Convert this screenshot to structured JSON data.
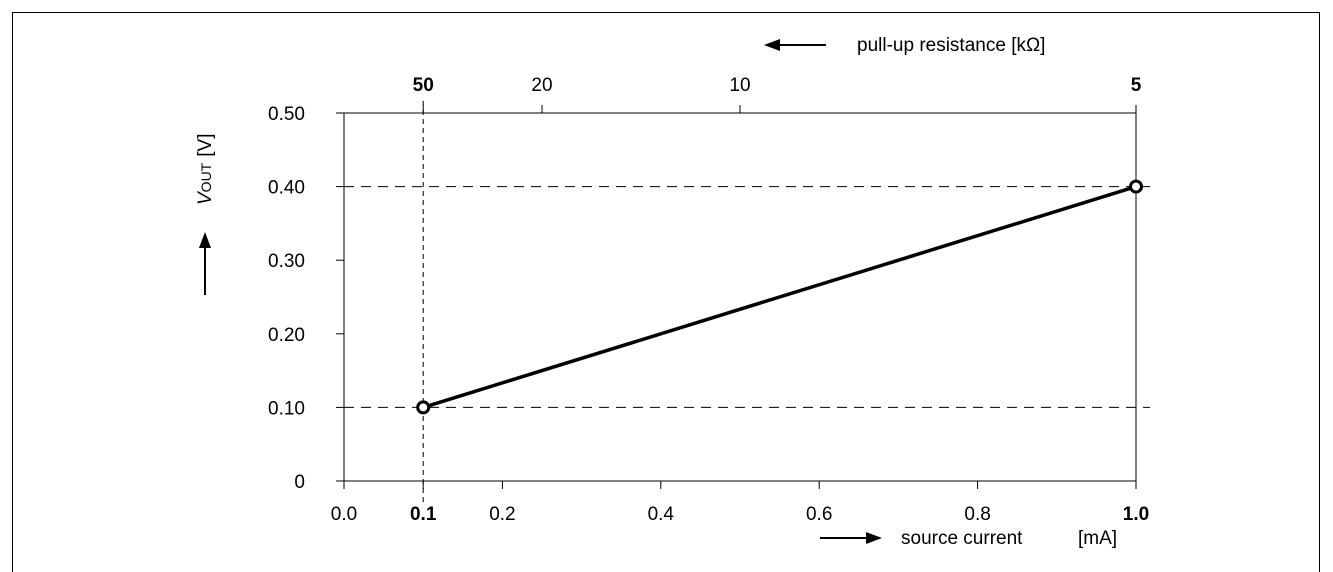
{
  "chart_data": {
    "type": "line",
    "x_axis": {
      "label": "source current",
      "unit": "[mA]",
      "range": [
        0.0,
        1.0
      ],
      "ticks": [
        {
          "value": 0.0,
          "label": "0.0",
          "bold": false
        },
        {
          "value": 0.1,
          "label": "0.1",
          "bold": true
        },
        {
          "value": 0.2,
          "label": "0.2",
          "bold": false
        },
        {
          "value": 0.4,
          "label": "0.4",
          "bold": false
        },
        {
          "value": 0.6,
          "label": "0.6",
          "bold": false
        },
        {
          "value": 0.8,
          "label": "0.8",
          "bold": false
        },
        {
          "value": 1.0,
          "label": "1.0",
          "bold": true
        }
      ]
    },
    "top_axis": {
      "label": "pull-up resistance [kΩ]",
      "ticks": [
        {
          "label": "50",
          "resistance_kohm": 50,
          "bold": true
        },
        {
          "label": "20",
          "resistance_kohm": 20,
          "bold": false
        },
        {
          "label": "10",
          "resistance_kohm": 10,
          "bold": false
        },
        {
          "label": "5",
          "resistance_kohm": 5,
          "bold": true
        }
      ]
    },
    "y_axis": {
      "label_main": "V",
      "label_sub": "OUT",
      "label_unit": "[V]",
      "range": [
        0,
        0.5
      ],
      "ticks": [
        {
          "value": 0,
          "label": "0"
        },
        {
          "value": 0.1,
          "label": "0.10"
        },
        {
          "value": 0.2,
          "label": "0.20"
        },
        {
          "value": 0.3,
          "label": "0.30"
        },
        {
          "value": 0.4,
          "label": "0.40"
        },
        {
          "value": 0.5,
          "label": "0.50"
        }
      ]
    },
    "series": [
      {
        "x": [
          0.1,
          1.0
        ],
        "y": [
          0.1,
          0.4
        ],
        "color": "#000000"
      }
    ],
    "reference_lines": {
      "horizontal": [
        0.1,
        0.4
      ],
      "vertical": [
        0.1
      ]
    },
    "grid": false
  }
}
